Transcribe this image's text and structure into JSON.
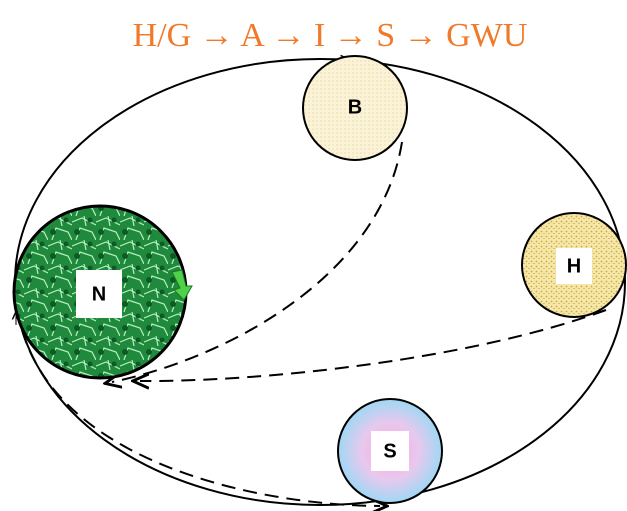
{
  "title": "H/G → A → I → S → GWU",
  "nodes": [
    {
      "label": "B"
    },
    {
      "label": "H"
    },
    {
      "label": "N"
    },
    {
      "label": "S"
    }
  ]
}
